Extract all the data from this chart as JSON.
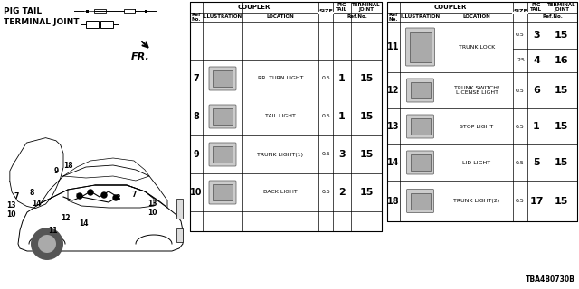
{
  "image_code": "TBA4B0730B",
  "bg_color": "#ffffff",
  "left_table": {
    "rows": [
      {
        "ref": "7",
        "location": "RR. TURN LIGHT",
        "size": "0.5",
        "pig": "1",
        "term": "15"
      },
      {
        "ref": "8",
        "location": "TAIL LIGHT",
        "size": "0.5",
        "pig": "1",
        "term": "15"
      },
      {
        "ref": "9",
        "location": "TRUNK LIGHT(1)",
        "size": "0.5",
        "pig": "3",
        "term": "15"
      },
      {
        "ref": "10",
        "location": "BACK LIGHT",
        "size": "0.5",
        "pig": "2",
        "term": "15"
      }
    ]
  },
  "right_table": {
    "rows": [
      {
        "ref": "11",
        "location": "TRUNK LOCK",
        "size1": "0.5",
        "pig1": "3",
        "term1": "15",
        "size2": ".25",
        "pig2": "4",
        "term2": "16",
        "double": true
      },
      {
        "ref": "12",
        "location": "TRUNK SWITCH/\nLICENSE LIGHT",
        "size": "0.5",
        "pig": "6",
        "term": "15",
        "double": false
      },
      {
        "ref": "13",
        "location": "STOP LIGHT",
        "size": "0.5",
        "pig": "1",
        "term": "15",
        "double": false
      },
      {
        "ref": "14",
        "location": "LID LIGHT",
        "size": "0.5",
        "pig": "5",
        "term": "15",
        "double": false
      },
      {
        "ref": "18",
        "location": "TRUNK LIGHT(2)",
        "size": "0.5",
        "pig": "17",
        "term": "15",
        "double": false
      }
    ]
  }
}
